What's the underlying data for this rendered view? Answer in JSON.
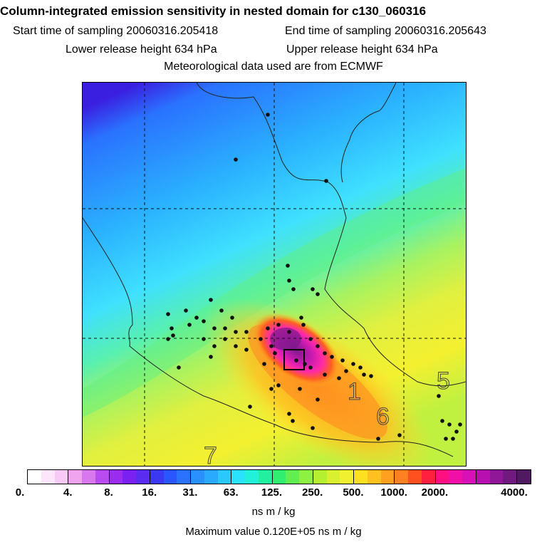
{
  "header": {
    "title": "Column-integrated emission sensitivity in nested domain for c130_060316",
    "start_label": "Start time of sampling 20060316.205418",
    "end_label": "End time of sampling 20060316.205643",
    "lower_label": "Lower release height  634 hPa",
    "upper_label": "Upper release height  634 hPa",
    "met_label": "Meteorological data used are from ECMWF"
  },
  "map": {
    "region_numbers": [
      "1",
      "5",
      "6",
      "7"
    ],
    "colors": {
      "purple_top": "#3a1fe0",
      "blue": "#2a7cff",
      "cyan": "#3fd3ff",
      "green": "#9af57a",
      "yellow": "#e8f040",
      "orange": "#ffb020",
      "magenta": "#ff2aa8",
      "dark_purple": "#8a1f9a"
    }
  },
  "colorbar": {
    "tick_labels": [
      "0.",
      "4.",
      "8.",
      "16.",
      "31.",
      "63.",
      "125.",
      "250.",
      "500.",
      "1000.",
      "2000.",
      "4000."
    ],
    "colors": [
      "#ffffff",
      "#fde6fb",
      "#f8c8f6",
      "#f0a4f0",
      "#d878ee",
      "#b84cf0",
      "#9a2cf0",
      "#7a20f0",
      "#5a2cf0",
      "#3a38f0",
      "#2a56ff",
      "#2a72ff",
      "#2a90ff",
      "#2aaaff",
      "#2ac8ff",
      "#2ae2ff",
      "#22f0d8",
      "#22f0a0",
      "#30ee70",
      "#60ee50",
      "#8ef040",
      "#b4f030",
      "#d8f030",
      "#f0f030",
      "#ffe020",
      "#ffc020",
      "#ffa020",
      "#ff8020",
      "#ff5020",
      "#ff2040",
      "#ff1080",
      "#f010a8",
      "#d810b8",
      "#b810b0",
      "#901898",
      "#701a80",
      "#501a60"
    ],
    "units": "ns m / kg",
    "max_value": "Maximum value  0.120E+05 ns m / kg"
  }
}
